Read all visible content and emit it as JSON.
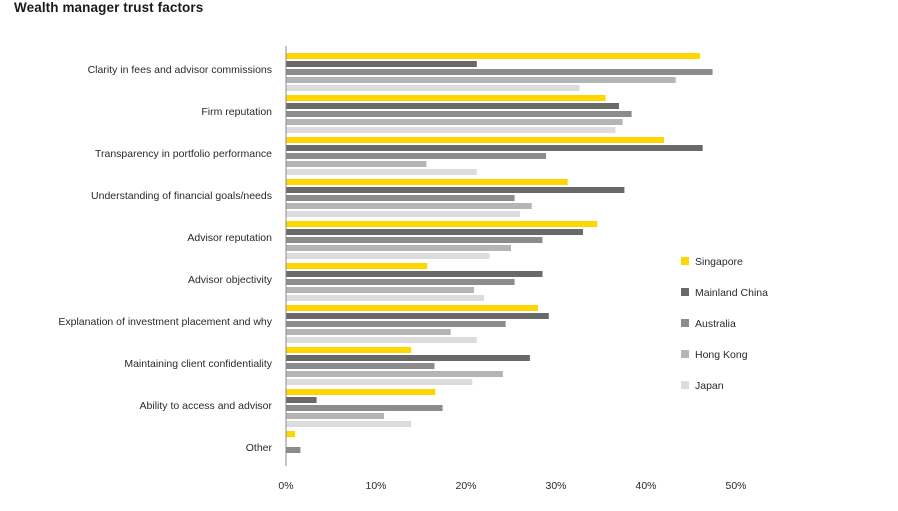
{
  "chart_data": {
    "type": "bar",
    "orientation": "horizontal",
    "title": "Wealth manager trust factors",
    "xlabel": "",
    "ylabel": "",
    "xlim": [
      0,
      50
    ],
    "x_ticks": [
      0,
      10,
      20,
      30,
      40,
      50
    ],
    "x_tick_labels": [
      "0%",
      "10%",
      "20%",
      "30%",
      "40%",
      "50%"
    ],
    "grid": false,
    "legend_position": "right",
    "categories": [
      "Clarity in fees and advisor commissions",
      "Firm reputation",
      "Transparency in portfolio performance",
      "Understanding of financial goals/needs",
      "Advisor reputation",
      "Advisor objectivity",
      "Explanation of investment placement and why",
      "Maintaining client confidentiality",
      "Ability to access and advisor",
      "Other"
    ],
    "series": [
      {
        "name": "Singapore",
        "color": "#ffd700",
        "values": [
          46,
          35.5,
          42,
          31.3,
          34.6,
          15.7,
          28,
          13.9,
          16.6,
          1
        ]
      },
      {
        "name": "Mainland China",
        "color": "#696969",
        "values": [
          21.2,
          37,
          46.3,
          37.6,
          33,
          28.5,
          29.2,
          27.1,
          3.4,
          null
        ]
      },
      {
        "name": "Australia",
        "color": "#8c8c8c",
        "values": [
          47.4,
          38.4,
          28.9,
          25.4,
          28.5,
          25.4,
          24.4,
          16.5,
          17.4,
          1.6
        ]
      },
      {
        "name": "Hong Kong",
        "color": "#b5b5b5",
        "values": [
          43.3,
          37.4,
          15.6,
          27.3,
          25,
          20.9,
          18.3,
          24.1,
          10.9,
          null
        ]
      },
      {
        "name": "Japan",
        "color": "#dcdcdc",
        "values": [
          32.6,
          36.6,
          21.2,
          26,
          22.6,
          22,
          21.2,
          20.7,
          13.9,
          null
        ]
      }
    ]
  }
}
